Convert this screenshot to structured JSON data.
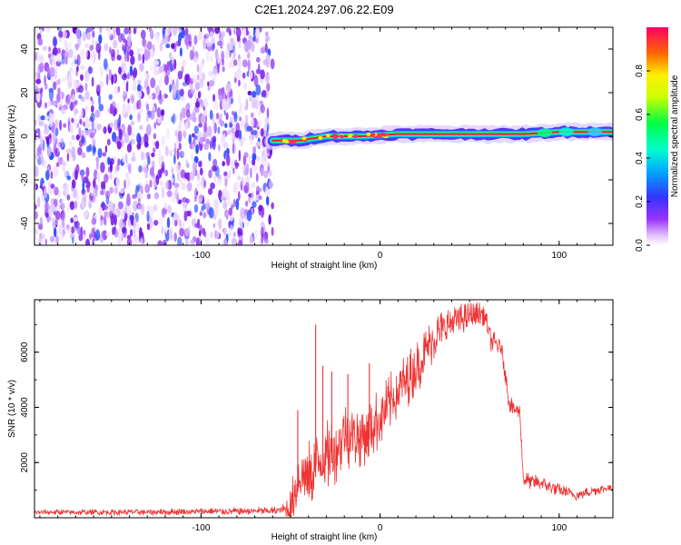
{
  "title": "C2E1.2024.297.06.22.E09",
  "chart_data": [
    {
      "type": "heatmap",
      "title": "C2E1.2024.297.06.22.E09",
      "xlabel": "Height of straight line (km)",
      "ylabel": "Frequency (Hz)",
      "xlim": [
        -193,
        130
      ],
      "ylim": [
        -50,
        50
      ],
      "x_ticks": [
        -100,
        0,
        100
      ],
      "x_tick_labels": [
        "-100",
        "0",
        "100"
      ],
      "y_ticks": [
        -40,
        -20,
        0,
        20,
        40
      ],
      "y_tick_labels": [
        "-40",
        "-20",
        "0",
        "20",
        "40"
      ],
      "grid": false,
      "noise_region_x": [
        -193,
        -60
      ],
      "signal_band": [
        {
          "x": -60,
          "freq": -2
        },
        {
          "x": -45,
          "freq": -2
        },
        {
          "x": -30,
          "freq": 0
        },
        {
          "x": -10,
          "freq": 0
        },
        {
          "x": 10,
          "freq": 1
        },
        {
          "x": 40,
          "freq": 1
        },
        {
          "x": 80,
          "freq": 1
        },
        {
          "x": 100,
          "freq": 2
        },
        {
          "x": 130,
          "freq": 2
        }
      ],
      "colorbar": {
        "label": "Normalized spectral amplitude",
        "range": [
          0,
          1
        ],
        "ticks": [
          0.0,
          0.2,
          0.4,
          0.6,
          0.8
        ],
        "tick_labels": [
          "0.0",
          "0.2",
          "0.4",
          "0.6",
          "0.8"
        ]
      }
    },
    {
      "type": "line",
      "xlabel": "Height of straight line (km)",
      "ylabel": "SNR (10 * v/v)",
      "xlim": [
        -193,
        130
      ],
      "ylim": [
        0,
        7900
      ],
      "x_ticks": [
        -100,
        0,
        100
      ],
      "x_tick_labels": [
        "-100",
        "0",
        "100"
      ],
      "y_ticks": [
        2000,
        4000,
        6000
      ],
      "y_tick_labels": [
        "2000",
        "4000",
        "6000"
      ],
      "grid": false,
      "color": "#ee3333",
      "x": [
        -193,
        -150,
        -100,
        -60,
        -50,
        -45,
        -40,
        -35,
        -30,
        -25,
        -20,
        -10,
        0,
        10,
        20,
        30,
        40,
        50,
        58,
        62,
        65,
        68,
        70,
        72,
        75,
        78,
        80,
        85,
        90,
        100,
        110,
        120,
        130
      ],
      "values": [
        200,
        200,
        220,
        250,
        300,
        1600,
        1400,
        2000,
        2200,
        2500,
        3000,
        3000,
        3600,
        4600,
        5400,
        6500,
        7100,
        7300,
        7400,
        6400,
        6300,
        6100,
        5200,
        4200,
        3900,
        3900,
        1400,
        1300,
        1250,
        1000,
        800,
        1000,
        1100
      ],
      "spikes": [
        {
          "x": -46,
          "value": 3900
        },
        {
          "x": -36,
          "value": 7000
        },
        {
          "x": -32,
          "value": 5500
        },
        {
          "x": -27,
          "value": 5300
        },
        {
          "x": -18,
          "value": 5200
        },
        {
          "x": -6,
          "value": 5600
        }
      ],
      "noise_amplitude": [
        {
          "x": -193,
          "amp": 100
        },
        {
          "x": -55,
          "amp": 150
        },
        {
          "x": -45,
          "amp": 1400
        },
        {
          "x": -10,
          "amp": 1200
        },
        {
          "x": 20,
          "amp": 1000
        },
        {
          "x": 60,
          "amp": 400
        },
        {
          "x": 80,
          "amp": 300
        },
        {
          "x": 130,
          "amp": 150
        }
      ]
    }
  ]
}
